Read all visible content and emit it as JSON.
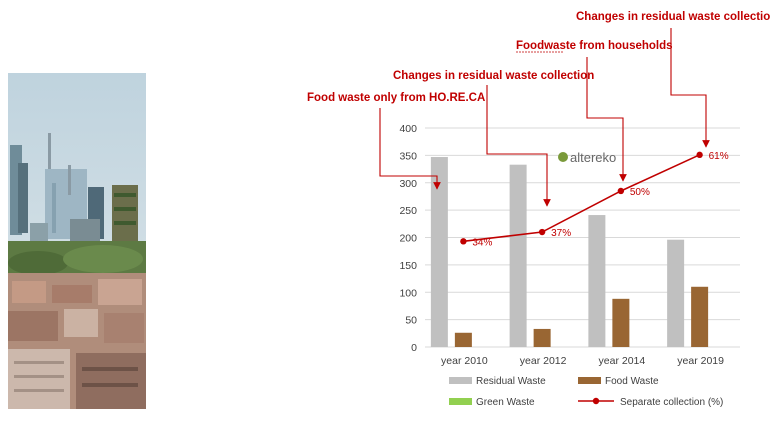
{
  "photo": {
    "icon": "city-skyline-photo"
  },
  "logo": {
    "text": "altereko"
  },
  "annotations": [
    {
      "text": "Food waste only from HO.RE.CA",
      "target": "year 2010"
    },
    {
      "text": "Changes in residual waste collection",
      "target": "year 2012"
    },
    {
      "text": "Foodwaste from households",
      "target": "year 2014"
    },
    {
      "text": "Changes in residual waste collection",
      "target": "year 2019"
    }
  ],
  "chart_data": {
    "type": "bar",
    "categories": [
      "year 2010",
      "year 2012",
      "year 2014",
      "year 2019"
    ],
    "ylim": [
      0,
      400
    ],
    "yticks": [
      0,
      50,
      100,
      150,
      200,
      250,
      300,
      350,
      400
    ],
    "grid": true,
    "legend_position": "bottom",
    "series": [
      {
        "name": "Residual Waste",
        "kind": "bar",
        "color": "#c0c0c0",
        "values": [
          347,
          333,
          241,
          196
        ]
      },
      {
        "name": "Food Waste",
        "kind": "bar",
        "color": "#996633",
        "values": [
          26,
          33,
          88,
          110
        ]
      },
      {
        "name": "Green Waste",
        "kind": "bar",
        "color": "#92d050",
        "values": [
          0,
          0,
          0,
          0
        ]
      },
      {
        "name": "Separate collection (%)",
        "kind": "line",
        "color": "#c00000",
        "values": [
          34,
          37,
          50,
          61
        ],
        "labels": [
          "34%",
          "37%",
          "50%",
          "61%"
        ],
        "plotted_on_left_axis": [
          193,
          210,
          285,
          351
        ]
      }
    ]
  }
}
